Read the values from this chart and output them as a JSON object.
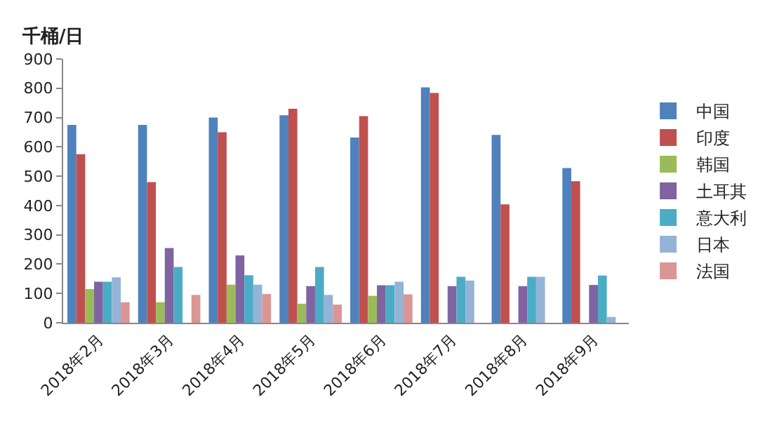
{
  "chart_data": {
    "type": "bar",
    "ylabel": "千桶/日",
    "categories": [
      "2018年2月",
      "2018年3月",
      "2018年4月",
      "2018年5月",
      "2018年6月",
      "2018年7月",
      "2018年8月",
      "2018年9月"
    ],
    "series": [
      {
        "name": "中国",
        "color": "#4f81bd",
        "values": [
          675,
          675,
          700,
          708,
          632,
          803,
          641,
          528
        ]
      },
      {
        "name": "印度",
        "color": "#c0504d",
        "values": [
          575,
          480,
          650,
          730,
          705,
          784,
          404,
          483
        ]
      },
      {
        "name": "韩国",
        "color": "#9bbb59",
        "values": [
          115,
          70,
          130,
          65,
          92,
          null,
          null,
          null
        ]
      },
      {
        "name": "土耳其",
        "color": "#8064a2",
        "values": [
          140,
          255,
          230,
          125,
          128,
          125,
          125,
          129
        ]
      },
      {
        "name": "意大利",
        "color": "#4bacc6",
        "values": [
          140,
          190,
          162,
          190,
          128,
          157,
          157,
          161
        ]
      },
      {
        "name": "日本",
        "color": "#95b3d7",
        "values": [
          155,
          null,
          130,
          95,
          140,
          144,
          157,
          20
        ]
      },
      {
        "name": "法国",
        "color": "#d99694",
        "values": [
          70,
          95,
          98,
          62,
          97,
          null,
          null,
          null
        ]
      }
    ],
    "ylim": [
      0,
      900
    ],
    "yticks": [
      0,
      100,
      200,
      300,
      400,
      500,
      600,
      700,
      800,
      900
    ],
    "legend": "right"
  }
}
